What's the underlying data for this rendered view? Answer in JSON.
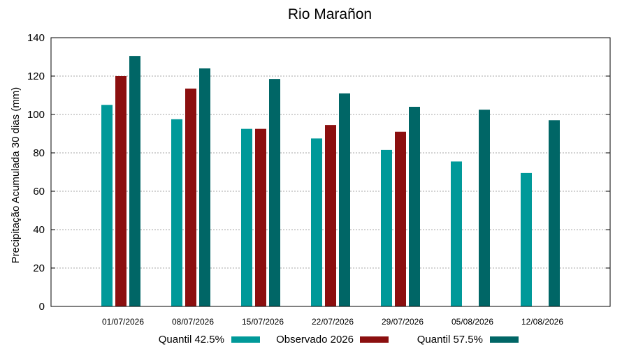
{
  "chart_data": {
    "type": "bar",
    "title": "Rio Marañon",
    "ylabel": "Precipitação Acumulada 30 dias (mm)",
    "xlabel": "",
    "ylim": [
      0,
      140
    ],
    "yticks": [
      0,
      20,
      40,
      60,
      80,
      100,
      120,
      140
    ],
    "grid": true,
    "legend_position": "bottom",
    "categories": [
      "01/07/2026",
      "08/07/2026",
      "15/07/2026",
      "22/07/2026",
      "29/07/2026",
      "05/08/2026",
      "12/08/2026"
    ],
    "series": [
      {
        "name": "Quantil 42.5%",
        "color": "#009999",
        "values": [
          105,
          97.5,
          92.5,
          87.5,
          81.5,
          75.5,
          69.5
        ]
      },
      {
        "name": "Observado 2026",
        "color": "#8b0f0f",
        "values": [
          120,
          113.5,
          92.5,
          94.5,
          91,
          null,
          null
        ]
      },
      {
        "name": "Quantil 57.5%",
        "color": "#006666",
        "values": [
          130.5,
          124,
          118.5,
          111,
          104,
          102.5,
          97
        ]
      }
    ]
  }
}
